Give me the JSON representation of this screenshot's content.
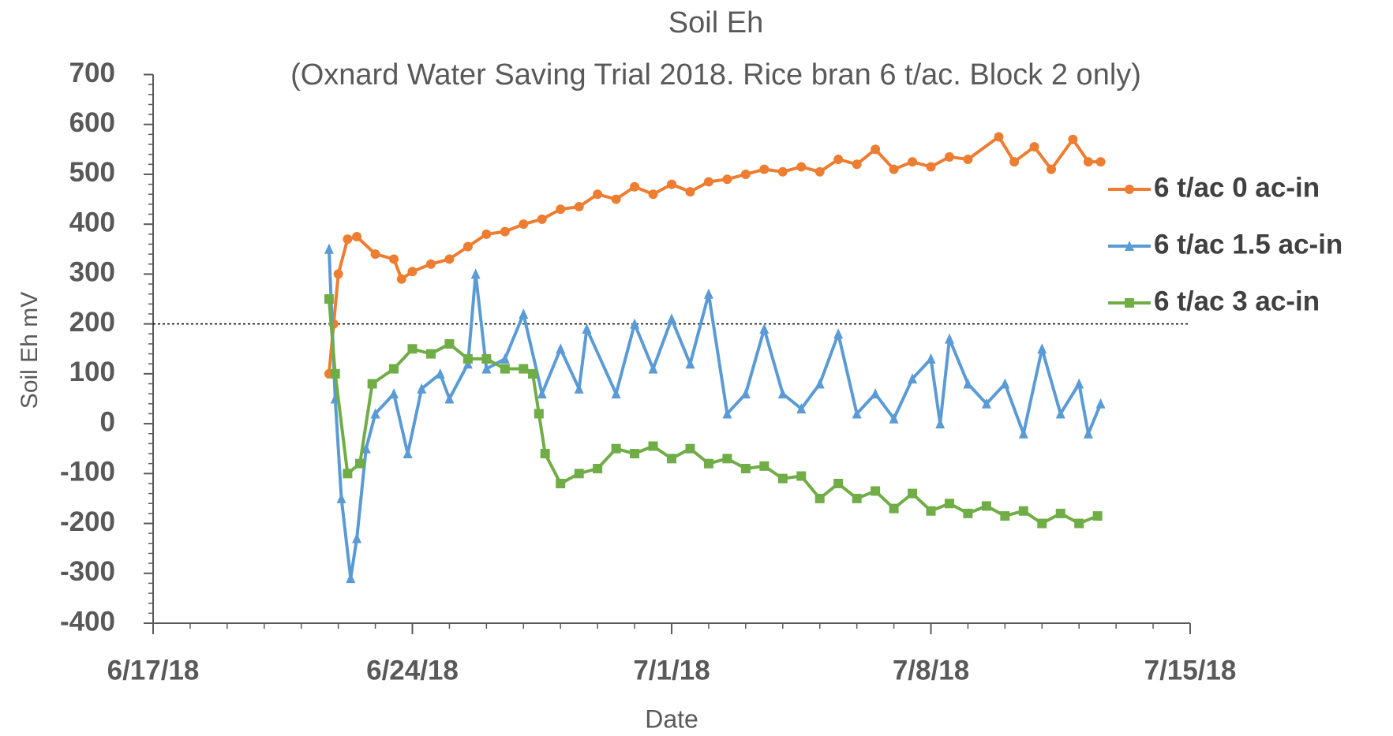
{
  "chart_data": {
    "type": "line",
    "title": "Soil Eh",
    "subtitle": "(Oxnard Water Saving Trial 2018. Rice bran 6 t/ac. Block 2 only)",
    "x_label": "Date",
    "y_label": "Soil Eh mV",
    "xlim": [
      "2018-06-17T00:00",
      "2018-07-15T00:00"
    ],
    "xticks": [
      {
        "value": "2018-06-17T00:00",
        "label": "6/17/18"
      },
      {
        "value": "2018-06-24T00:00",
        "label": "6/24/18"
      },
      {
        "value": "2018-07-01T00:00",
        "label": "7/1/18"
      },
      {
        "value": "2018-07-08T00:00",
        "label": "7/8/18"
      },
      {
        "value": "2018-07-15T00:00",
        "label": "7/15/18"
      }
    ],
    "ylim": [
      -400,
      700
    ],
    "yticks": [
      -400,
      -300,
      -200,
      -100,
      0,
      100,
      200,
      300,
      400,
      500,
      600,
      700
    ],
    "reference_line": 200,
    "legend": "right",
    "series": [
      {
        "name": "6 t/ac 0 ac-in",
        "color": "#ed7d31",
        "marker": "circle",
        "x": [
          "2018-06-21T18:00",
          "2018-06-21T21:00",
          "2018-06-22T00:00",
          "2018-06-22T06:00",
          "2018-06-22T12:00",
          "2018-06-23T00:00",
          "2018-06-23T12:00",
          "2018-06-23T17:00",
          "2018-06-24T00:00",
          "2018-06-24T12:00",
          "2018-06-25T00:00",
          "2018-06-25T12:00",
          "2018-06-26T00:00",
          "2018-06-26T12:00",
          "2018-06-27T00:00",
          "2018-06-27T12:00",
          "2018-06-28T00:00",
          "2018-06-28T12:00",
          "2018-06-29T00:00",
          "2018-06-29T12:00",
          "2018-06-30T00:00",
          "2018-06-30T12:00",
          "2018-07-01T00:00",
          "2018-07-01T12:00",
          "2018-07-02T00:00",
          "2018-07-02T12:00",
          "2018-07-03T00:00",
          "2018-07-03T12:00",
          "2018-07-04T00:00",
          "2018-07-04T12:00",
          "2018-07-05T00:00",
          "2018-07-05T12:00",
          "2018-07-06T00:00",
          "2018-07-06T12:00",
          "2018-07-07T00:00",
          "2018-07-07T12:00",
          "2018-07-08T00:00",
          "2018-07-08T12:00",
          "2018-07-09T00:00",
          "2018-07-09T20:00",
          "2018-07-10T06:00",
          "2018-07-10T19:00",
          "2018-07-11T06:00",
          "2018-07-11T20:00",
          "2018-07-12T06:00",
          "2018-07-12T14:00"
        ],
        "values": [
          100,
          200,
          300,
          370,
          375,
          340,
          330,
          290,
          305,
          320,
          330,
          355,
          380,
          385,
          400,
          410,
          430,
          435,
          460,
          450,
          475,
          460,
          480,
          465,
          485,
          490,
          500,
          510,
          505,
          515,
          505,
          530,
          520,
          550,
          510,
          525,
          515,
          535,
          530,
          575,
          525,
          555,
          510,
          570,
          525,
          525
        ]
      },
      {
        "name": "6 t/ac 1.5 ac-in",
        "color": "#5b9bd5",
        "marker": "triangle",
        "x": [
          "2018-06-21T18:00",
          "2018-06-21T22:00",
          "2018-06-22T02:00",
          "2018-06-22T08:00",
          "2018-06-22T12:00",
          "2018-06-22T18:00",
          "2018-06-23T00:00",
          "2018-06-23T12:00",
          "2018-06-23T21:00",
          "2018-06-24T06:00",
          "2018-06-24T18:00",
          "2018-06-25T00:00",
          "2018-06-25T12:00",
          "2018-06-25T17:00",
          "2018-06-26T00:00",
          "2018-06-26T12:00",
          "2018-06-27T00:00",
          "2018-06-27T12:00",
          "2018-06-28T00:00",
          "2018-06-28T12:00",
          "2018-06-28T17:00",
          "2018-06-29T12:00",
          "2018-06-30T00:00",
          "2018-06-30T12:00",
          "2018-07-01T00:00",
          "2018-07-01T12:00",
          "2018-07-02T00:00",
          "2018-07-02T12:00",
          "2018-07-03T00:00",
          "2018-07-03T12:00",
          "2018-07-04T00:00",
          "2018-07-04T12:00",
          "2018-07-05T00:00",
          "2018-07-05T12:00",
          "2018-07-06T00:00",
          "2018-07-06T12:00",
          "2018-07-07T00:00",
          "2018-07-07T12:00",
          "2018-07-08T00:00",
          "2018-07-08T06:00",
          "2018-07-08T12:00",
          "2018-07-09T00:00",
          "2018-07-09T12:00",
          "2018-07-10T00:00",
          "2018-07-10T12:00",
          "2018-07-11T00:00",
          "2018-07-11T12:00",
          "2018-07-12T00:00",
          "2018-07-12T06:00",
          "2018-07-12T14:00"
        ],
        "values": [
          350,
          50,
          -150,
          -310,
          -230,
          -50,
          20,
          60,
          -60,
          70,
          100,
          50,
          120,
          300,
          110,
          130,
          220,
          60,
          150,
          70,
          190,
          60,
          200,
          110,
          210,
          120,
          260,
          20,
          60,
          190,
          60,
          30,
          80,
          180,
          20,
          60,
          10,
          90,
          130,
          0,
          170,
          80,
          40,
          80,
          -20,
          150,
          20,
          80,
          -20,
          40
        ]
      },
      {
        "name": "6 t/ac 3 ac-in",
        "color": "#70ad47",
        "marker": "square",
        "x": [
          "2018-06-21T18:00",
          "2018-06-21T22:00",
          "2018-06-22T06:00",
          "2018-06-22T14:00",
          "2018-06-22T22:00",
          "2018-06-23T12:00",
          "2018-06-24T00:00",
          "2018-06-24T12:00",
          "2018-06-25T00:00",
          "2018-06-25T12:00",
          "2018-06-26T00:00",
          "2018-06-26T12:00",
          "2018-06-27T00:00",
          "2018-06-27T06:00",
          "2018-06-27T10:00",
          "2018-06-27T14:00",
          "2018-06-28T00:00",
          "2018-06-28T12:00",
          "2018-06-29T00:00",
          "2018-06-29T12:00",
          "2018-06-30T00:00",
          "2018-06-30T12:00",
          "2018-07-01T00:00",
          "2018-07-01T12:00",
          "2018-07-02T00:00",
          "2018-07-02T12:00",
          "2018-07-03T00:00",
          "2018-07-03T12:00",
          "2018-07-04T00:00",
          "2018-07-04T12:00",
          "2018-07-05T00:00",
          "2018-07-05T12:00",
          "2018-07-06T00:00",
          "2018-07-06T12:00",
          "2018-07-07T00:00",
          "2018-07-07T12:00",
          "2018-07-08T00:00",
          "2018-07-08T12:00",
          "2018-07-09T00:00",
          "2018-07-09T12:00",
          "2018-07-10T00:00",
          "2018-07-10T12:00",
          "2018-07-11T00:00",
          "2018-07-11T12:00",
          "2018-07-12T00:00",
          "2018-07-12T12:00"
        ],
        "values": [
          250,
          100,
          -100,
          -80,
          80,
          110,
          150,
          140,
          160,
          130,
          130,
          110,
          110,
          100,
          20,
          -60,
          -120,
          -100,
          -90,
          -50,
          -60,
          -45,
          -70,
          -50,
          -80,
          -70,
          -90,
          -85,
          -110,
          -105,
          -150,
          -120,
          -150,
          -135,
          -170,
          -140,
          -175,
          -160,
          -180,
          -165,
          -185,
          -175,
          -200,
          -180,
          -200,
          -185
        ]
      }
    ]
  }
}
